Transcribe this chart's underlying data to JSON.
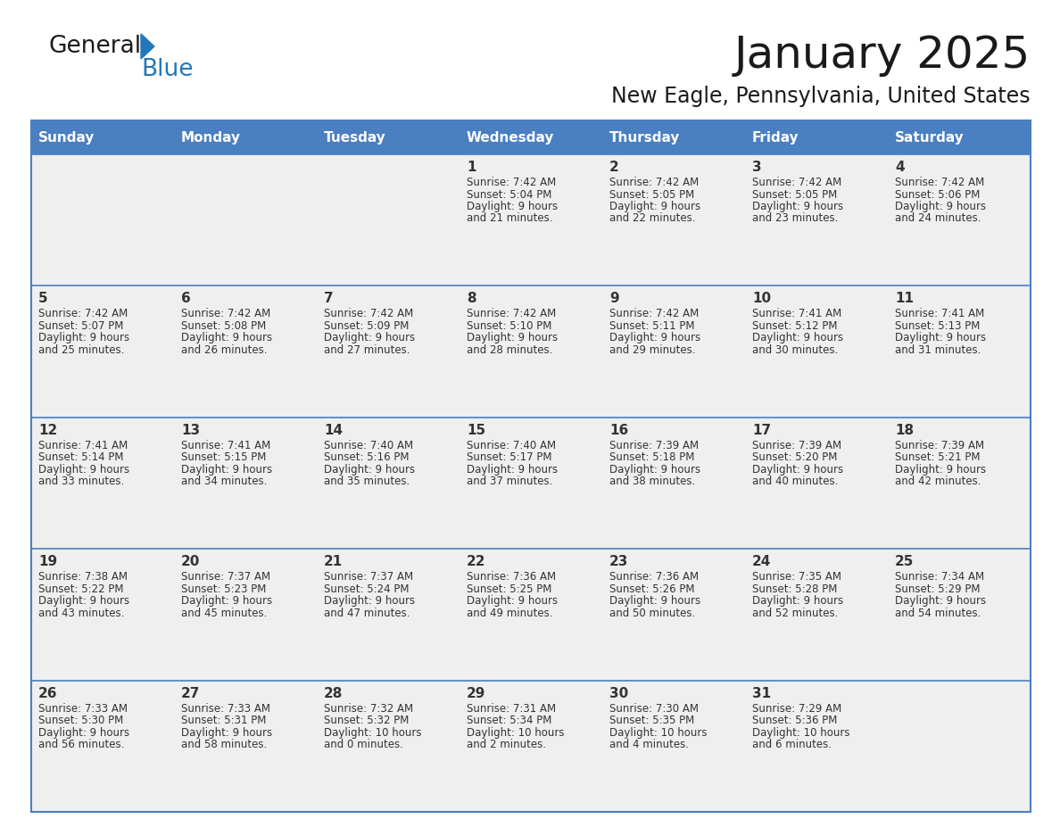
{
  "title": "January 2025",
  "subtitle": "New Eagle, Pennsylvania, United States",
  "days_of_week": [
    "Sunday",
    "Monday",
    "Tuesday",
    "Wednesday",
    "Thursday",
    "Friday",
    "Saturday"
  ],
  "header_bg": "#4a7fc1",
  "header_text_color": "#FFFFFF",
  "cell_bg": "#EFEFEF",
  "grid_line_color": "#4a7fc1",
  "text_color": "#333333",
  "title_color": "#1a1a1a",
  "calendar_data": [
    [
      {
        "day": null,
        "sunrise": null,
        "sunset": null,
        "daylight": null
      },
      {
        "day": null,
        "sunrise": null,
        "sunset": null,
        "daylight": null
      },
      {
        "day": null,
        "sunrise": null,
        "sunset": null,
        "daylight": null
      },
      {
        "day": 1,
        "sunrise": "7:42 AM",
        "sunset": "5:04 PM",
        "daylight": "9 hours\nand 21 minutes."
      },
      {
        "day": 2,
        "sunrise": "7:42 AM",
        "sunset": "5:05 PM",
        "daylight": "9 hours\nand 22 minutes."
      },
      {
        "day": 3,
        "sunrise": "7:42 AM",
        "sunset": "5:05 PM",
        "daylight": "9 hours\nand 23 minutes."
      },
      {
        "day": 4,
        "sunrise": "7:42 AM",
        "sunset": "5:06 PM",
        "daylight": "9 hours\nand 24 minutes."
      }
    ],
    [
      {
        "day": 5,
        "sunrise": "7:42 AM",
        "sunset": "5:07 PM",
        "daylight": "9 hours\nand 25 minutes."
      },
      {
        "day": 6,
        "sunrise": "7:42 AM",
        "sunset": "5:08 PM",
        "daylight": "9 hours\nand 26 minutes."
      },
      {
        "day": 7,
        "sunrise": "7:42 AM",
        "sunset": "5:09 PM",
        "daylight": "9 hours\nand 27 minutes."
      },
      {
        "day": 8,
        "sunrise": "7:42 AM",
        "sunset": "5:10 PM",
        "daylight": "9 hours\nand 28 minutes."
      },
      {
        "day": 9,
        "sunrise": "7:42 AM",
        "sunset": "5:11 PM",
        "daylight": "9 hours\nand 29 minutes."
      },
      {
        "day": 10,
        "sunrise": "7:41 AM",
        "sunset": "5:12 PM",
        "daylight": "9 hours\nand 30 minutes."
      },
      {
        "day": 11,
        "sunrise": "7:41 AM",
        "sunset": "5:13 PM",
        "daylight": "9 hours\nand 31 minutes."
      }
    ],
    [
      {
        "day": 12,
        "sunrise": "7:41 AM",
        "sunset": "5:14 PM",
        "daylight": "9 hours\nand 33 minutes."
      },
      {
        "day": 13,
        "sunrise": "7:41 AM",
        "sunset": "5:15 PM",
        "daylight": "9 hours\nand 34 minutes."
      },
      {
        "day": 14,
        "sunrise": "7:40 AM",
        "sunset": "5:16 PM",
        "daylight": "9 hours\nand 35 minutes."
      },
      {
        "day": 15,
        "sunrise": "7:40 AM",
        "sunset": "5:17 PM",
        "daylight": "9 hours\nand 37 minutes."
      },
      {
        "day": 16,
        "sunrise": "7:39 AM",
        "sunset": "5:18 PM",
        "daylight": "9 hours\nand 38 minutes."
      },
      {
        "day": 17,
        "sunrise": "7:39 AM",
        "sunset": "5:20 PM",
        "daylight": "9 hours\nand 40 minutes."
      },
      {
        "day": 18,
        "sunrise": "7:39 AM",
        "sunset": "5:21 PM",
        "daylight": "9 hours\nand 42 minutes."
      }
    ],
    [
      {
        "day": 19,
        "sunrise": "7:38 AM",
        "sunset": "5:22 PM",
        "daylight": "9 hours\nand 43 minutes."
      },
      {
        "day": 20,
        "sunrise": "7:37 AM",
        "sunset": "5:23 PM",
        "daylight": "9 hours\nand 45 minutes."
      },
      {
        "day": 21,
        "sunrise": "7:37 AM",
        "sunset": "5:24 PM",
        "daylight": "9 hours\nand 47 minutes."
      },
      {
        "day": 22,
        "sunrise": "7:36 AM",
        "sunset": "5:25 PM",
        "daylight": "9 hours\nand 49 minutes."
      },
      {
        "day": 23,
        "sunrise": "7:36 AM",
        "sunset": "5:26 PM",
        "daylight": "9 hours\nand 50 minutes."
      },
      {
        "day": 24,
        "sunrise": "7:35 AM",
        "sunset": "5:28 PM",
        "daylight": "9 hours\nand 52 minutes."
      },
      {
        "day": 25,
        "sunrise": "7:34 AM",
        "sunset": "5:29 PM",
        "daylight": "9 hours\nand 54 minutes."
      }
    ],
    [
      {
        "day": 26,
        "sunrise": "7:33 AM",
        "sunset": "5:30 PM",
        "daylight": "9 hours\nand 56 minutes."
      },
      {
        "day": 27,
        "sunrise": "7:33 AM",
        "sunset": "5:31 PM",
        "daylight": "9 hours\nand 58 minutes."
      },
      {
        "day": 28,
        "sunrise": "7:32 AM",
        "sunset": "5:32 PM",
        "daylight": "10 hours\nand 0 minutes."
      },
      {
        "day": 29,
        "sunrise": "7:31 AM",
        "sunset": "5:34 PM",
        "daylight": "10 hours\nand 2 minutes."
      },
      {
        "day": 30,
        "sunrise": "7:30 AM",
        "sunset": "5:35 PM",
        "daylight": "10 hours\nand 4 minutes."
      },
      {
        "day": 31,
        "sunrise": "7:29 AM",
        "sunset": "5:36 PM",
        "daylight": "10 hours\nand 6 minutes."
      },
      {
        "day": null,
        "sunrise": null,
        "sunset": null,
        "daylight": null
      }
    ]
  ],
  "logo_color_general": "#1a1a1a",
  "logo_color_blue": "#2277BB",
  "logo_triangle_color": "#2277BB"
}
